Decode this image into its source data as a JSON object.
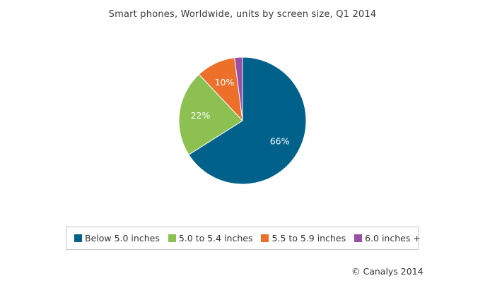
{
  "chart_data": {
    "type": "pie",
    "title": "Smart phones, Worldwide, units by screen size, Q1 2014",
    "categories": [
      "Below 5.0 inches",
      "5.0 to 5.4 inches",
      "5.5 to 5.9 inches",
      "6.0 inches +"
    ],
    "values": [
      66,
      22,
      10,
      2
    ],
    "data_labels": [
      "66%",
      "22%",
      "10%",
      ""
    ],
    "colors": [
      "#00618a",
      "#8cc152",
      "#ec6f2a",
      "#9a4ea6"
    ],
    "legend_placement": "bottom",
    "start_angle_deg": 90,
    "direction": "clockwise"
  },
  "legend": {
    "items": [
      {
        "label": "Below 5.0 inches",
        "color": "#00618a"
      },
      {
        "label": "5.0 to 5.4 inches",
        "color": "#8cc152"
      },
      {
        "label": "5.5 to 5.9 inches",
        "color": "#ec6f2a"
      },
      {
        "label": "6.0 inches +",
        "color": "#9a4ea6"
      }
    ]
  },
  "credit": "© Canalys 2014"
}
